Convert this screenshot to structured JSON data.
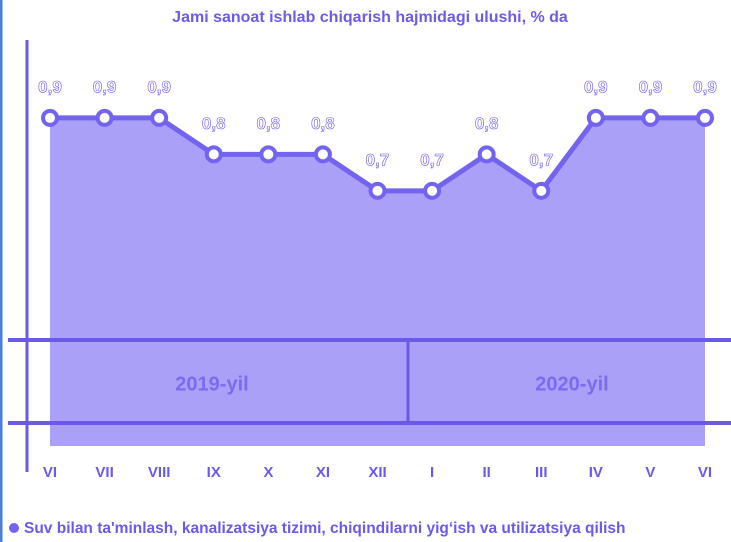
{
  "chart_data": {
    "type": "area",
    "title": "Jami sanoat ishlab chiqarish hajmidagi ulushi, % da",
    "categories": [
      "VI",
      "VII",
      "VIII",
      "IX",
      "X",
      "XI",
      "XII",
      "I",
      "II",
      "III",
      "IV",
      "V",
      "VI"
    ],
    "series": [
      {
        "name": "Suv bilan ta'minlash, kanalizatsiya tizimi, chiqindilarni yig‘ish va utilizatsiya qilish",
        "color": "#7263f0",
        "values": [
          0.9,
          0.9,
          0.9,
          0.8,
          0.8,
          0.8,
          0.7,
          0.7,
          0.8,
          0.7,
          0.9,
          0.9,
          0.9
        ],
        "value_labels": [
          "0,9",
          "0,9",
          "0,9",
          "0,8",
          "0,8",
          "0,8",
          "0,7",
          "0,7",
          "0,8",
          "0,7",
          "0,9",
          "0,9",
          "0,9"
        ]
      }
    ],
    "annotations": [
      "2019-yil",
      "2020-yil"
    ],
    "ylim": [
      0,
      1.1
    ]
  }
}
